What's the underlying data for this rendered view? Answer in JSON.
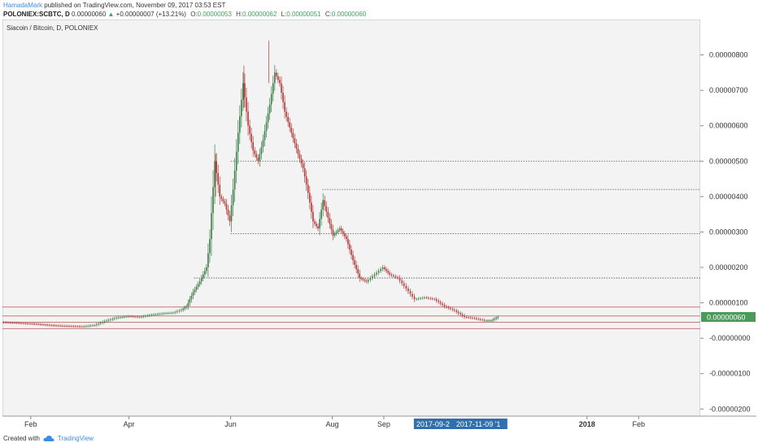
{
  "header": {
    "author": "HamadaMark",
    "published_text": "published on TradingView.com, November 09, 2017 03:53 EST",
    "symbol": "POLONIEX:SCBTC, D",
    "last": "0.00000060",
    "change": "+0.00000007 (+13.21%)",
    "o_label": "O:",
    "o_value": "0.00000053",
    "h_label": "H:",
    "h_value": "0.00000062",
    "l_label": "L:",
    "l_value": "0.00000051",
    "c_label": "C:",
    "c_value": "0.00000060"
  },
  "footer": {
    "created_with": "Created with",
    "brand": "TradingView"
  },
  "chart_data": {
    "type": "line",
    "title": "Siacoin / Bitcoin, D, POLONIEX",
    "ylim": [
      -2.2e-06,
      9e-06
    ],
    "y_ticks": [
      {
        "value": 8e-06,
        "label": "0.00000800"
      },
      {
        "value": 7e-06,
        "label": "0.00000700"
      },
      {
        "value": 6e-06,
        "label": "0.00000600"
      },
      {
        "value": 5e-06,
        "label": "0.00000500"
      },
      {
        "value": 4e-06,
        "label": "0.00000400"
      },
      {
        "value": 3e-06,
        "label": "0.00000300"
      },
      {
        "value": 2e-06,
        "label": "0.00000200"
      },
      {
        "value": 1e-06,
        "label": "0.00000100"
      },
      {
        "value": 0.0,
        "label": "-0.00000000"
      },
      {
        "value": -1e-06,
        "label": "-0.00000100"
      },
      {
        "value": -2e-06,
        "label": "-0.00000200"
      }
    ],
    "x_range": [
      "2017-01-15",
      "2018-03-10"
    ],
    "x_ticks": [
      {
        "date": "2017-02-01",
        "label": "Feb"
      },
      {
        "date": "2017-04-01",
        "label": "Apr"
      },
      {
        "date": "2017-06-01",
        "label": "Jun"
      },
      {
        "date": "2017-08-01",
        "label": "Aug"
      },
      {
        "date": "2017-09-01",
        "label": "Sep"
      },
      {
        "date": "2018-01-01",
        "label": "2018"
      },
      {
        "date": "2018-02-01",
        "label": "Feb"
      }
    ],
    "range_labels": [
      "2017-09-2",
      "2017-11-09 '1"
    ],
    "last_price": {
      "value": 6e-07,
      "label": "0.00000060"
    },
    "horizontal_levels": [
      {
        "value": 5e-06,
        "start": "2017-06-01",
        "style": "dotted"
      },
      {
        "value": 4.2e-06,
        "start": "2017-07-26",
        "style": "dotted"
      },
      {
        "value": 2.95e-06,
        "start": "2017-06-01",
        "style": "dotted"
      },
      {
        "value": 1.7e-06,
        "start": "2017-05-10",
        "style": "dotted"
      },
      {
        "value": 8.8e-07,
        "start": "2017-01-15",
        "style": "red"
      },
      {
        "value": 6.3e-07,
        "start": "2017-01-15",
        "style": "red"
      },
      {
        "value": 4.5e-07,
        "start": "2017-01-15",
        "style": "red"
      },
      {
        "value": 2.7e-07,
        "start": "2017-01-15",
        "style": "red"
      }
    ],
    "series": [
      {
        "points": [
          [
            "2017-01-15",
            4.5e-07
          ],
          [
            "2017-01-25",
            4.3e-07
          ],
          [
            "2017-02-05",
            4e-07
          ],
          [
            "2017-02-15",
            3.6e-07
          ],
          [
            "2017-02-25",
            3.4e-07
          ],
          [
            "2017-03-05",
            3.3e-07
          ],
          [
            "2017-03-12",
            3.7e-07
          ],
          [
            "2017-03-18",
            4.8e-07
          ],
          [
            "2017-03-25",
            5.8e-07
          ],
          [
            "2017-04-01",
            6.2e-07
          ],
          [
            "2017-04-08",
            6e-07
          ],
          [
            "2017-04-15",
            6.6e-07
          ],
          [
            "2017-04-22",
            7e-07
          ],
          [
            "2017-04-28",
            7.2e-07
          ],
          [
            "2017-05-03",
            8e-07
          ],
          [
            "2017-05-06",
            9e-07
          ],
          [
            "2017-05-10",
            1.3e-06
          ],
          [
            "2017-05-14",
            1.6e-06
          ],
          [
            "2017-05-18",
            2e-06
          ],
          [
            "2017-05-20",
            2.8e-06
          ],
          [
            "2017-05-23",
            5e-06
          ],
          [
            "2017-05-26",
            4e-06
          ],
          [
            "2017-05-29",
            3.8e-06
          ],
          [
            "2017-06-01",
            3.3e-06
          ],
          [
            "2017-06-03",
            4.2e-06
          ],
          [
            "2017-06-06",
            5.8e-06
          ],
          [
            "2017-06-09",
            7.2e-06
          ],
          [
            "2017-06-12",
            6e-06
          ],
          [
            "2017-06-15",
            5.3e-06
          ],
          [
            "2017-06-18",
            5e-06
          ],
          [
            "2017-06-21",
            5.6e-06
          ],
          [
            "2017-06-25",
            6.6e-06
          ],
          [
            "2017-06-28",
            7.5e-06
          ],
          [
            "2017-07-01",
            7.2e-06
          ],
          [
            "2017-07-04",
            6.4e-06
          ],
          [
            "2017-07-08",
            5.8e-06
          ],
          [
            "2017-07-12",
            5.2e-06
          ],
          [
            "2017-07-15",
            4.8e-06
          ],
          [
            "2017-07-18",
            4.1e-06
          ],
          [
            "2017-07-21",
            3.3e-06
          ],
          [
            "2017-07-24",
            3.1e-06
          ],
          [
            "2017-07-27",
            3.9e-06
          ],
          [
            "2017-07-30",
            3.4e-06
          ],
          [
            "2017-08-02",
            2.9e-06
          ],
          [
            "2017-08-06",
            3.1e-06
          ],
          [
            "2017-08-10",
            2.8e-06
          ],
          [
            "2017-08-14",
            2.2e-06
          ],
          [
            "2017-08-18",
            1.7e-06
          ],
          [
            "2017-08-22",
            1.6e-06
          ],
          [
            "2017-08-27",
            1.8e-06
          ],
          [
            "2017-09-01",
            2e-06
          ],
          [
            "2017-09-05",
            1.8e-06
          ],
          [
            "2017-09-10",
            1.7e-06
          ],
          [
            "2017-09-15",
            1.4e-06
          ],
          [
            "2017-09-20",
            1.1e-06
          ],
          [
            "2017-09-26",
            1.15e-06
          ],
          [
            "2017-10-02",
            1.1e-06
          ],
          [
            "2017-10-08",
            9e-07
          ],
          [
            "2017-10-14",
            7.8e-07
          ],
          [
            "2017-10-20",
            6e-07
          ],
          [
            "2017-10-26",
            5.6e-07
          ],
          [
            "2017-11-01",
            5e-07
          ],
          [
            "2017-11-05",
            5e-07
          ],
          [
            "2017-11-09",
            6e-07
          ]
        ]
      }
    ]
  },
  "colors": {
    "plot_bg": "#f3f3f3",
    "up": "#3a7d47",
    "down": "#b23a3a",
    "level_red": "#c77a7a",
    "level_dotted": "#555555",
    "price_tag": "#4a9a5a",
    "range_tag": "#2f6fae"
  }
}
